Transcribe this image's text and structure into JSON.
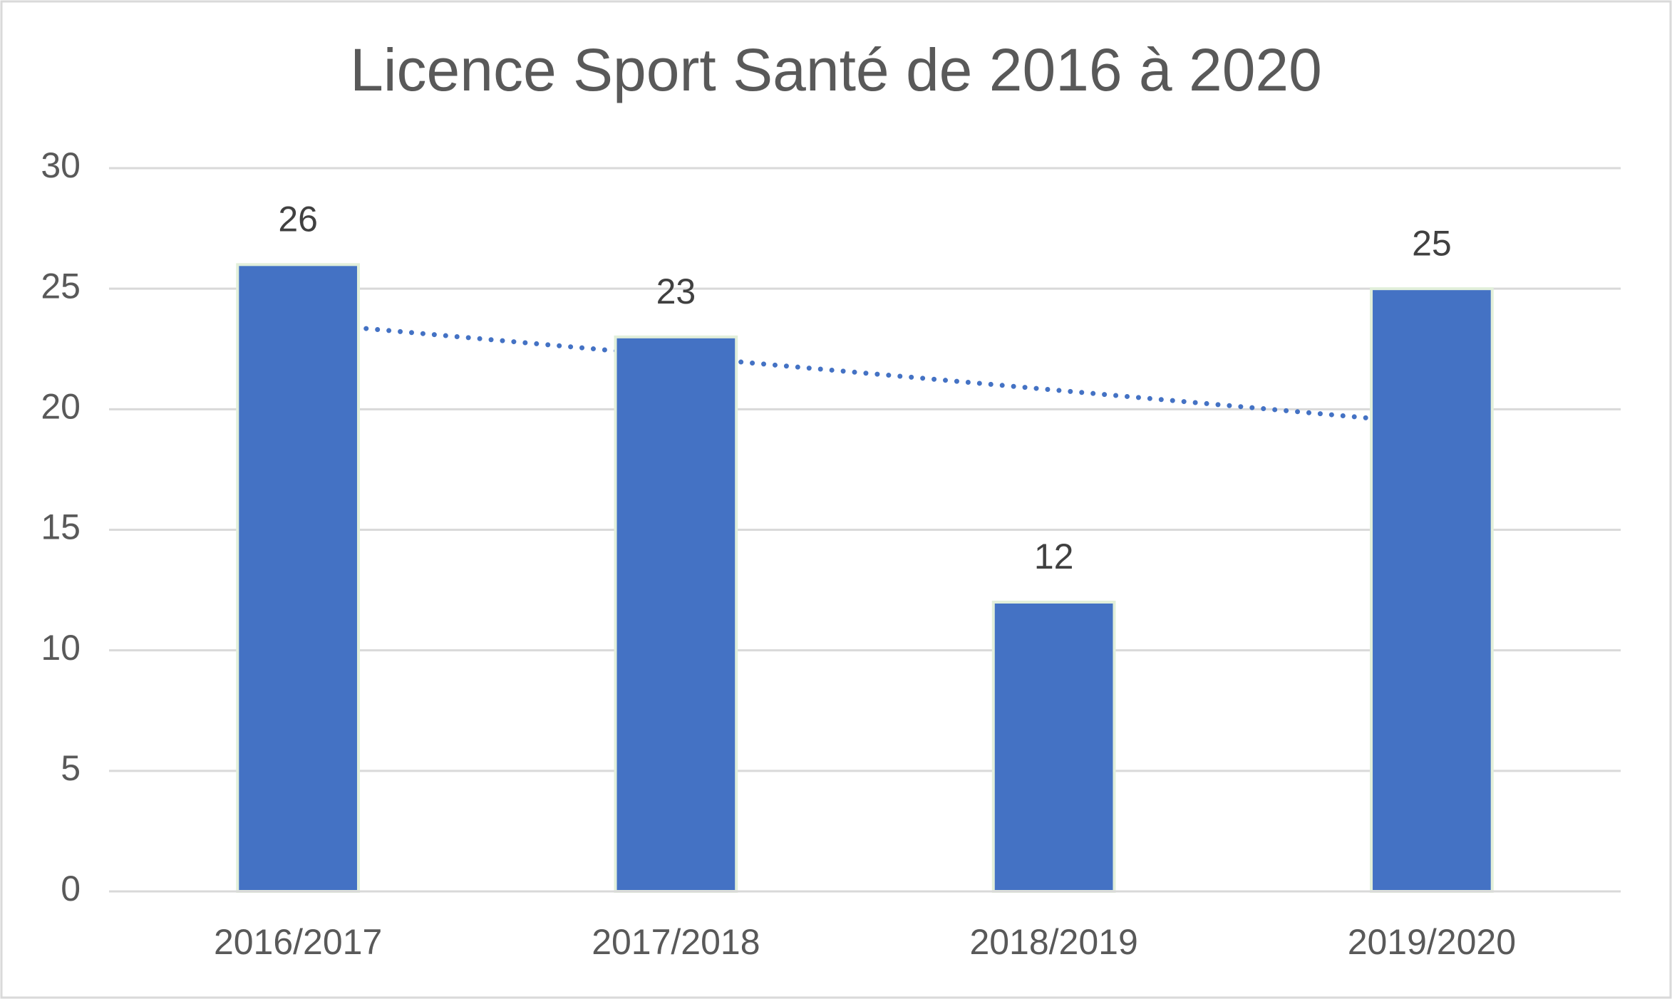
{
  "chart_data": {
    "type": "bar",
    "title": "Licence Sport Santé de 2016 à 2020",
    "categories": [
      "2016/2017",
      "2017/2018",
      "2018/2019",
      "2019/2020"
    ],
    "values": [
      26,
      23,
      12,
      25
    ],
    "color": "#4472c4",
    "ylim": [
      0,
      30
    ],
    "yticks": [
      0,
      5,
      10,
      15,
      20,
      25,
      30
    ],
    "grid": true,
    "trendline": "linear"
  }
}
